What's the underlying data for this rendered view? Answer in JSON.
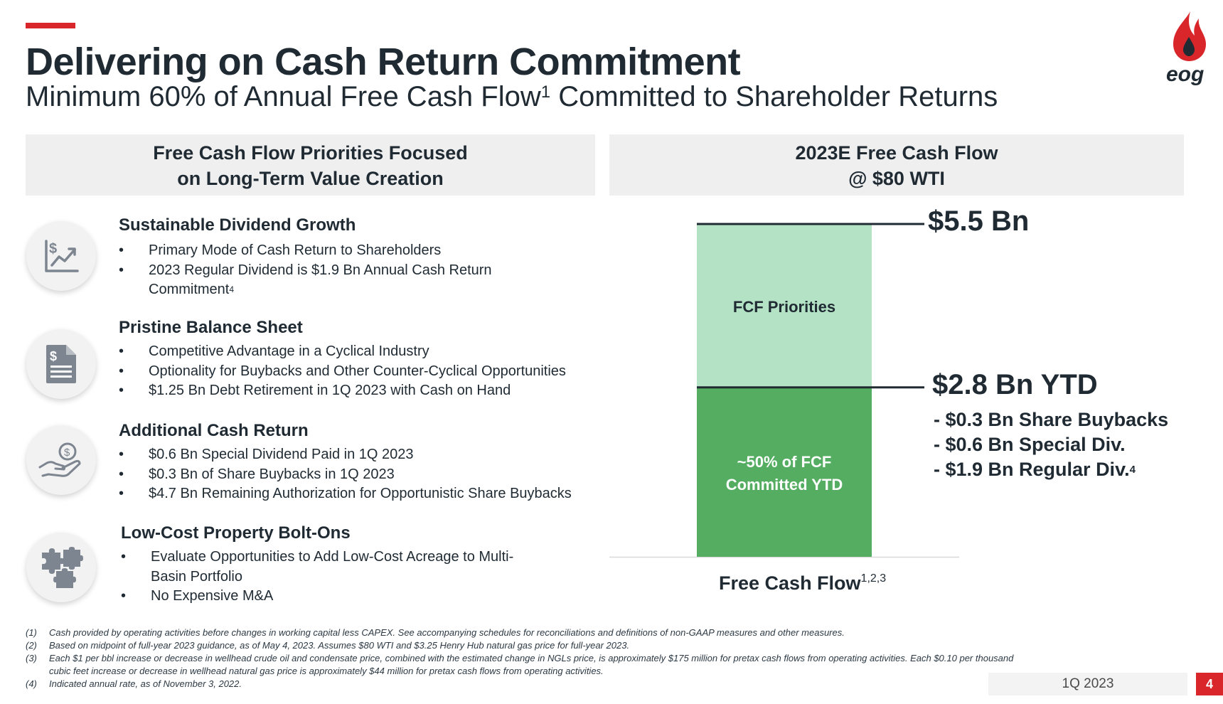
{
  "header": {
    "title": "Delivering on Cash Return Commitment",
    "subtitle_pre": "Minimum 60% of Annual Free Cash Flow",
    "subtitle_sup": "1",
    "subtitle_post": " Committed to Shareholder Returns",
    "logo_text": "eog",
    "accent_color": "#d8262b"
  },
  "left_panel": {
    "header_line1": "Free Cash Flow Priorities Focused",
    "header_line2": "on Long-Term Value Creation",
    "priorities": [
      {
        "icon": "dollar-growth-chart-icon",
        "title": "Sustainable Dividend Growth",
        "bullets": [
          "Primary Mode of Cash Return to Shareholders",
          "2023 Regular Dividend is $1.9 Bn Annual Cash Return Commitment"
        ],
        "bullet2_sup": "4"
      },
      {
        "icon": "dollar-document-icon",
        "title": "Pristine Balance Sheet",
        "bullets": [
          "Competitive Advantage in a Cyclical Industry",
          "Optionality for Buybacks and Other Counter-Cyclical Opportunities",
          "$1.25 Bn Debt Retirement in 1Q 2023 with Cash on Hand"
        ]
      },
      {
        "icon": "hand-dollar-coin-icon",
        "title": "Additional Cash Return",
        "bullets": [
          "$0.6 Bn Special Dividend Paid in 1Q 2023",
          "$0.3 Bn of Share Buybacks in 1Q 2023",
          "$4.7 Bn Remaining Authorization for Opportunistic Share Buybacks"
        ]
      },
      {
        "icon": "puzzle-pieces-icon",
        "title": "Low-Cost Property Bolt-Ons",
        "bullets": [
          "Evaluate Opportunities to Add Low-Cost Acreage to Multi-Basin Portfolio",
          "No Expensive M&A"
        ]
      }
    ]
  },
  "right_panel": {
    "header_line1": "2023E Free Cash Flow",
    "header_line2": "@ $80 WTI"
  },
  "chart_data": {
    "type": "bar",
    "stacked": true,
    "categories": [
      "Free Cash Flow"
    ],
    "x_label_sup": "1,2,3",
    "unit": "$ Bn",
    "ylim": [
      0,
      5.5
    ],
    "series": [
      {
        "label": "~50% of FCF Committed YTD",
        "value": 2.8,
        "color": "#55ad62"
      },
      {
        "label": "FCF Priorities",
        "value": 2.7,
        "color": "#b3e2c4"
      }
    ],
    "totals": [
      {
        "value": 5.5,
        "label": "$5.5 Bn"
      },
      {
        "value": 2.8,
        "label": "$2.8 Bn YTD"
      }
    ],
    "ytd_breakdown": [
      {
        "text": "- $0.3 Bn Share Buybacks",
        "value": 0.3
      },
      {
        "text": "- $0.6 Bn Special Div.",
        "value": 0.6
      },
      {
        "text": "- $1.9 Bn Regular Div.",
        "value": 1.9,
        "sup": "4"
      }
    ]
  },
  "footnotes": [
    {
      "n": "(1)",
      "text": "Cash provided by operating activities before changes in working capital less CAPEX. See accompanying schedules for reconciliations and definitions of non-GAAP measures and other measures."
    },
    {
      "n": "(2)",
      "text": "Based on midpoint of full-year 2023 guidance, as of May 4, 2023. Assumes $80 WTI and $3.25 Henry Hub natural gas price for full-year 2023."
    },
    {
      "n": "(3)",
      "text": "Each $1 per bbl increase or decrease in wellhead crude oil and condensate price, combined with the estimated change in NGLs price, is approximately $175 million for pretax cash flows from operating activities.  Each $0.10 per thousand cubic feet increase or decrease in wellhead natural gas price is approximately $44 million for pretax cash flows from operating activities."
    },
    {
      "n": "(4)",
      "text": "Indicated annual rate, as of November 3, 2022."
    }
  ],
  "footer": {
    "period": "1Q 2023",
    "page": "4"
  }
}
